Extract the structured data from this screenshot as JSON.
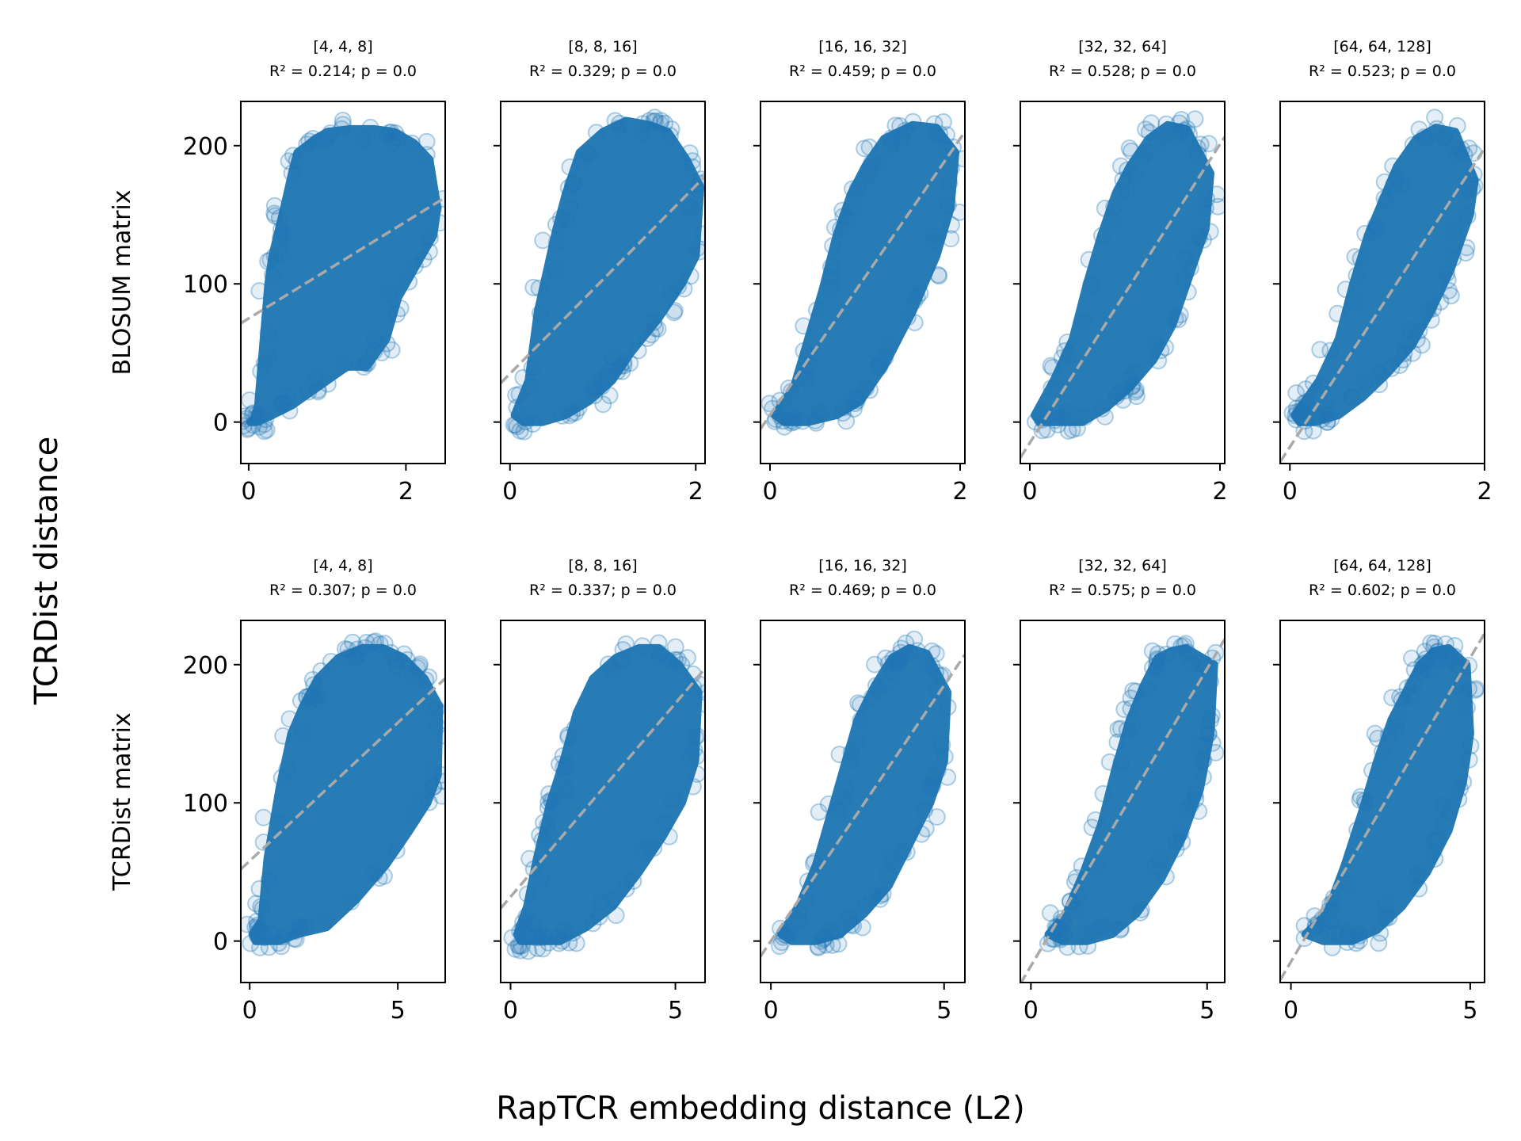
{
  "figure": {
    "supxlabel": "RapTCR embedding distance (L2)",
    "supylabel": "TCRDist distance"
  },
  "colors": {
    "points": "#1f77b4",
    "fit_line": "#a9a9a9"
  },
  "chart_data": [
    {
      "type": "scatter",
      "row": 0,
      "col": 0,
      "title": "[4, 4, 8]",
      "stats": "R² = 0.214; p = 0.0",
      "ylabel": "BLOSUM matrix",
      "xlim": [
        -0.1,
        2.5
      ],
      "ylim": [
        -30,
        232
      ],
      "xticks": [
        0,
        2
      ],
      "yticks": [
        0,
        100,
        200
      ],
      "cloud": {
        "x": [
          0.05,
          0.12,
          0.25,
          0.3,
          0.45,
          0.55,
          0.62,
          0.85,
          1.0,
          1.3,
          1.6,
          1.85,
          2.1,
          2.3,
          2.4,
          2.35,
          2.1,
          1.9,
          1.75,
          1.5,
          1.25,
          1.0,
          0.75,
          0.55,
          0.3,
          0.1,
          0.02
        ],
        "y": [
          0,
          12,
          100,
          120,
          155,
          180,
          195,
          205,
          210,
          212,
          212,
          210,
          202,
          190,
          155,
          135,
          110,
          90,
          60,
          40,
          40,
          30,
          20,
          12,
          5,
          0,
          0
        ]
      },
      "fit": {
        "slope": 35,
        "intercept": 75
      }
    },
    {
      "type": "scatter",
      "row": 0,
      "col": 1,
      "title": "[8, 8, 16]",
      "stats": "R² = 0.329; p = 0.0",
      "ylabel": "",
      "xlim": [
        -0.1,
        2.1
      ],
      "ylim": [
        -30,
        232
      ],
      "xticks": [
        0,
        2
      ],
      "yticks": [
        0,
        100,
        200
      ],
      "cloud": {
        "x": [
          0.05,
          0.2,
          0.3,
          0.4,
          0.5,
          0.6,
          0.75,
          1.0,
          1.25,
          1.5,
          1.7,
          1.9,
          2.05,
          2.0,
          1.85,
          1.6,
          1.3,
          1.1,
          0.85,
          0.6,
          0.35,
          0.15
        ],
        "y": [
          5,
          30,
          80,
          110,
          140,
          165,
          195,
          210,
          218,
          215,
          210,
          190,
          170,
          120,
          100,
          75,
          50,
          30,
          15,
          5,
          0,
          0
        ]
      },
      "fit": {
        "slope": 68,
        "intercept": 35
      }
    },
    {
      "type": "scatter",
      "row": 0,
      "col": 2,
      "title": "[16, 16, 32]",
      "stats": "R² = 0.459; p = 0.0",
      "ylabel": "",
      "xlim": [
        -0.1,
        2.05
      ],
      "ylim": [
        -30,
        232
      ],
      "xticks": [
        0,
        2
      ],
      "yticks": [
        0,
        100,
        200
      ],
      "cloud": {
        "x": [
          0.05,
          0.25,
          0.4,
          0.55,
          0.7,
          0.85,
          1.0,
          1.2,
          1.5,
          1.75,
          1.95,
          1.9,
          1.75,
          1.5,
          1.2,
          0.95,
          0.7,
          0.4,
          0.15
        ],
        "y": [
          5,
          25,
          60,
          95,
          135,
          165,
          185,
          205,
          215,
          213,
          195,
          155,
          120,
          80,
          40,
          15,
          5,
          0,
          0
        ]
      },
      "fit": {
        "slope": 100,
        "intercept": 5
      }
    },
    {
      "type": "scatter",
      "row": 0,
      "col": 3,
      "title": "[32, 32, 64]",
      "stats": "R² = 0.528; p = 0.0",
      "ylabel": "",
      "xlim": [
        -0.1,
        2.05
      ],
      "ylim": [
        -30,
        232
      ],
      "xticks": [
        0,
        2
      ],
      "yticks": [
        0,
        100,
        200
      ],
      "cloud": {
        "x": [
          0.05,
          0.25,
          0.45,
          0.6,
          0.75,
          0.9,
          1.05,
          1.25,
          1.45,
          1.65,
          1.9,
          1.85,
          1.7,
          1.5,
          1.3,
          1.05,
          0.8,
          0.55,
          0.3,
          0.1
        ],
        "y": [
          5,
          30,
          60,
          100,
          135,
          165,
          185,
          205,
          215,
          212,
          180,
          140,
          110,
          70,
          45,
          25,
          10,
          0,
          0,
          0
        ]
      },
      "fit": {
        "slope": 108,
        "intercept": -15
      }
    },
    {
      "type": "scatter",
      "row": 0,
      "col": 4,
      "title": "[64, 64, 128]",
      "stats": "R² = 0.523; p = 0.0",
      "ylabel": "",
      "xlim": [
        -0.1,
        2.0
      ],
      "ylim": [
        -30,
        232
      ],
      "xticks": [
        0,
        2
      ],
      "yticks": [
        0,
        100,
        200
      ],
      "cloud": {
        "x": [
          0.05,
          0.3,
          0.5,
          0.65,
          0.8,
          0.95,
          1.1,
          1.3,
          1.5,
          1.7,
          1.9,
          1.85,
          1.65,
          1.45,
          1.25,
          1.0,
          0.75,
          0.5,
          0.25,
          0.1
        ],
        "y": [
          5,
          30,
          60,
          100,
          135,
          160,
          185,
          205,
          213,
          210,
          175,
          150,
          110,
          80,
          55,
          35,
          18,
          5,
          0,
          0
        ]
      },
      "fit": {
        "slope": 108,
        "intercept": -18
      }
    },
    {
      "type": "scatter",
      "row": 1,
      "col": 0,
      "title": "[4, 4, 8]",
      "stats": "R² = 0.307; p = 0.0",
      "ylabel": "TCRDist matrix",
      "xlim": [
        -0.3,
        6.6
      ],
      "ylim": [
        -30,
        232
      ],
      "xticks": [
        0,
        5
      ],
      "yticks": [
        0,
        100,
        200
      ],
      "cloud": {
        "x": [
          0.1,
          0.4,
          0.6,
          1.0,
          1.4,
          1.8,
          2.3,
          3.0,
          3.8,
          4.5,
          5.2,
          5.9,
          6.4,
          6.35,
          6.0,
          5.4,
          4.6,
          3.6,
          2.6,
          1.6,
          1.0,
          0.5,
          0.2
        ],
        "y": [
          5,
          15,
          60,
          110,
          150,
          170,
          190,
          205,
          212,
          212,
          205,
          190,
          170,
          120,
          100,
          80,
          55,
          30,
          10,
          5,
          0,
          0,
          0
        ]
      },
      "fit": {
        "slope": 20,
        "intercept": 58
      }
    },
    {
      "type": "scatter",
      "row": 1,
      "col": 1,
      "title": "[8, 8, 16]",
      "stats": "R² = 0.337; p = 0.0",
      "ylabel": "",
      "xlim": [
        -0.3,
        5.9
      ],
      "ylim": [
        -30,
        232
      ],
      "xticks": [
        0,
        5
      ],
      "yticks": [
        0,
        100,
        200
      ],
      "cloud": {
        "x": [
          0.2,
          0.5,
          0.8,
          1.2,
          1.6,
          2.0,
          2.5,
          3.2,
          3.9,
          4.5,
          5.1,
          5.7,
          5.6,
          5.2,
          4.6,
          3.9,
          3.1,
          2.3,
          1.5,
          0.8,
          0.3
        ],
        "y": [
          5,
          25,
          60,
          100,
          130,
          165,
          190,
          205,
          212,
          212,
          200,
          180,
          130,
          100,
          75,
          50,
          25,
          10,
          0,
          0,
          0
        ]
      },
      "fit": {
        "slope": 28,
        "intercept": 32
      }
    },
    {
      "type": "scatter",
      "row": 1,
      "col": 2,
      "title": "[16, 16, 32]",
      "stats": "R² = 0.469; p = 0.0",
      "ylabel": "",
      "xlim": [
        -0.3,
        5.6
      ],
      "ylim": [
        -30,
        232
      ],
      "xticks": [
        0,
        5
      ],
      "yticks": [
        0,
        100,
        200
      ],
      "cloud": {
        "x": [
          0.3,
          0.8,
          1.3,
          1.7,
          2.1,
          2.5,
          3.0,
          3.5,
          4.0,
          4.5,
          5.1,
          5.0,
          4.6,
          4.0,
          3.4,
          2.7,
          2.0,
          1.3,
          0.6
        ],
        "y": [
          5,
          25,
          55,
          90,
          125,
          160,
          185,
          205,
          212,
          208,
          180,
          130,
          100,
          70,
          40,
          20,
          5,
          0,
          0
        ]
      },
      "fit": {
        "slope": 37,
        "intercept": 0
      }
    },
    {
      "type": "scatter",
      "row": 1,
      "col": 3,
      "title": "[32, 32, 64]",
      "stats": "R² = 0.575; p = 0.0",
      "ylabel": "",
      "xlim": [
        -0.3,
        5.5
      ],
      "ylim": [
        -30,
        232
      ],
      "xticks": [
        0,
        5
      ],
      "yticks": [
        0,
        100,
        200
      ],
      "cloud": {
        "x": [
          0.5,
          1.0,
          1.5,
          2.0,
          2.4,
          2.8,
          3.2,
          3.6,
          4.0,
          4.4,
          5.2,
          5.1,
          4.8,
          4.3,
          3.7,
          3.0,
          2.3,
          1.6,
          0.9
        ],
        "y": [
          5,
          20,
          50,
          85,
          125,
          160,
          185,
          205,
          210,
          212,
          200,
          150,
          110,
          75,
          45,
          20,
          5,
          0,
          0
        ]
      },
      "fit": {
        "slope": 43,
        "intercept": -18
      }
    },
    {
      "type": "scatter",
      "row": 1,
      "col": 4,
      "title": "[64, 64, 128]",
      "stats": "R² = 0.602; p = 0.0",
      "ylabel": "",
      "xlim": [
        -0.3,
        5.4
      ],
      "ylim": [
        -30,
        232
      ],
      "xticks": [
        0,
        5
      ],
      "yticks": [
        0,
        100,
        200
      ],
      "cloud": {
        "x": [
          0.4,
          1.0,
          1.5,
          2.0,
          2.4,
          2.8,
          3.2,
          3.6,
          4.0,
          4.4,
          4.9,
          5.0,
          4.8,
          4.4,
          3.8,
          3.1,
          2.4,
          1.7,
          0.9
        ],
        "y": [
          5,
          20,
          55,
          95,
          130,
          160,
          180,
          200,
          210,
          212,
          200,
          150,
          115,
          80,
          50,
          25,
          8,
          0,
          0
        ]
      },
      "fit": {
        "slope": 44,
        "intercept": -15
      }
    }
  ]
}
